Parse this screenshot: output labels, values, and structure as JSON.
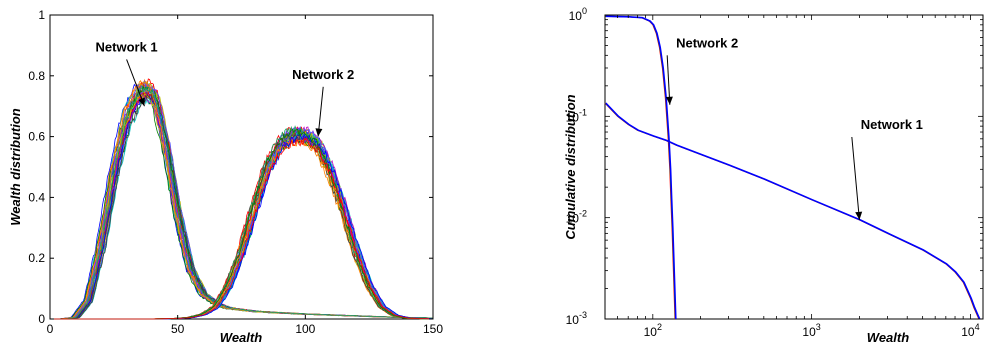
{
  "palette": [
    "#0000ff",
    "#008000",
    "#ff0000",
    "#00bfbf",
    "#bf00bf",
    "#bfbf00",
    "#404040",
    "#5050ff",
    "#ff7f00",
    "#20a060"
  ],
  "chart_data": [
    {
      "type": "line",
      "xlabel": "Wealth",
      "ylabel": "Wealth distribution",
      "xlim": [
        0,
        150
      ],
      "ylim": [
        0,
        1
      ],
      "xticks": [
        0,
        50,
        100,
        150
      ],
      "yticks": [
        0,
        0.2,
        0.4,
        0.6,
        0.8,
        1
      ],
      "xtick_labels": [
        "0",
        "50",
        "100",
        "150"
      ],
      "ytick_labels": [
        "0",
        "0.2",
        "0.4",
        "0.6",
        "0.8",
        "1"
      ],
      "grid": false,
      "legend": "none",
      "series_count_per_network": 30,
      "networks": [
        {
          "name": "Network 1",
          "x": [
            0,
            5,
            10,
            15,
            20,
            25,
            30,
            35,
            38,
            41,
            45,
            50,
            55,
            60,
            65,
            70,
            80,
            90,
            100,
            110,
            120,
            130,
            140,
            150
          ],
          "y": [
            0,
            0,
            0.005,
            0.06,
            0.24,
            0.48,
            0.66,
            0.74,
            0.75,
            0.72,
            0.58,
            0.34,
            0.16,
            0.08,
            0.05,
            0.035,
            0.025,
            0.02,
            0.016,
            0.013,
            0.01,
            0.007,
            0.005,
            0.003
          ]
        },
        {
          "name": "Network 2",
          "x": [
            0,
            40,
            50,
            55,
            60,
            65,
            70,
            75,
            80,
            85,
            90,
            95,
            100,
            105,
            110,
            115,
            120,
            125,
            130,
            135,
            140,
            150
          ],
          "y": [
            0,
            0,
            0.002,
            0.005,
            0.015,
            0.04,
            0.11,
            0.22,
            0.36,
            0.49,
            0.57,
            0.6,
            0.6,
            0.57,
            0.48,
            0.36,
            0.22,
            0.11,
            0.04,
            0.012,
            0.003,
            0
          ]
        }
      ],
      "annotations": [
        {
          "text": "Network 1",
          "x": 30,
          "y": 0.88,
          "arrow_to": [
            37,
            0.7
          ]
        },
        {
          "text": "Network 2",
          "x": 107,
          "y": 0.79,
          "arrow_to": [
            105,
            0.6
          ]
        }
      ]
    },
    {
      "type": "line",
      "xlabel": "Wealth",
      "ylabel": "Cumulative distribution",
      "xscale": "log",
      "yscale": "log",
      "xlim": [
        50,
        12000
      ],
      "ylim": [
        0.001,
        1
      ],
      "xticks": [
        100,
        1000,
        10000
      ],
      "yticks": [
        0.001,
        0.01,
        0.1,
        1
      ],
      "xtick_labels": [
        [
          "10",
          "2"
        ],
        [
          "10",
          "3"
        ],
        [
          "10",
          "4"
        ]
      ],
      "ytick_labels": [
        [
          "10",
          "-3"
        ],
        [
          "10",
          "-2"
        ],
        [
          "10",
          "-1"
        ],
        [
          "10",
          "0"
        ]
      ],
      "grid": false,
      "legend": "none",
      "networks": [
        {
          "name": "Network 2",
          "x": [
            50,
            70,
            85,
            95,
            100,
            105,
            110,
            115,
            120,
            125,
            128,
            130,
            132,
            134,
            136,
            138
          ],
          "y": [
            0.97,
            0.96,
            0.94,
            0.87,
            0.8,
            0.66,
            0.48,
            0.3,
            0.15,
            0.06,
            0.03,
            0.015,
            0.008,
            0.004,
            0.002,
            0.001
          ]
        },
        {
          "name": "Network 1",
          "x": [
            50,
            60,
            70,
            80,
            100,
            120,
            140,
            200,
            300,
            500,
            1000,
            2000,
            3000,
            5000,
            7000,
            8000,
            9000,
            10000,
            10500,
            11000,
            11300
          ],
          "y": [
            0.135,
            0.1,
            0.083,
            0.073,
            0.064,
            0.058,
            0.052,
            0.042,
            0.033,
            0.024,
            0.015,
            0.0095,
            0.007,
            0.0048,
            0.0035,
            0.0029,
            0.0023,
            0.0016,
            0.0013,
            0.0011,
            0.001
          ]
        }
      ],
      "annotations": [
        {
          "text": "Network 2",
          "x": 220,
          "y": 0.48,
          "arrow_to": [
            128,
            0.13
          ]
        },
        {
          "text": "Network 1",
          "x": 3200,
          "y": 0.075,
          "arrow_to": [
            2000,
            0.0095
          ]
        }
      ]
    }
  ]
}
